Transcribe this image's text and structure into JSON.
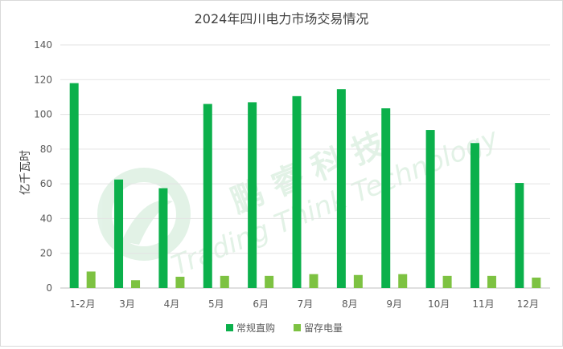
{
  "chart_data": {
    "type": "bar",
    "title": "2024年四川电力市场交易情况",
    "ylabel": "亿千瓦时",
    "xlabel": "",
    "ylim": [
      0,
      140
    ],
    "yticks": [
      0,
      20,
      40,
      60,
      80,
      100,
      120,
      140
    ],
    "grid": true,
    "legend_position": "bottom",
    "categories": [
      "1-2月",
      "3月",
      "4月",
      "5月",
      "6月",
      "7月",
      "8月",
      "9月",
      "10月",
      "11月",
      "12月"
    ],
    "series": [
      {
        "name": "常规直购",
        "color": "#0bb04b",
        "values": [
          118,
          62.5,
          57.5,
          106,
          107,
          110.5,
          114.5,
          103.5,
          91,
          83.5,
          60.5
        ]
      },
      {
        "name": "留存电量",
        "color": "#7dc242",
        "values": [
          9.5,
          4.5,
          6.5,
          7,
          7,
          8,
          7.5,
          8,
          7,
          7,
          6
        ]
      }
    ]
  },
  "watermark": {
    "chinese": "鹏 睿 科 技",
    "english": "Trading Think Technology"
  }
}
